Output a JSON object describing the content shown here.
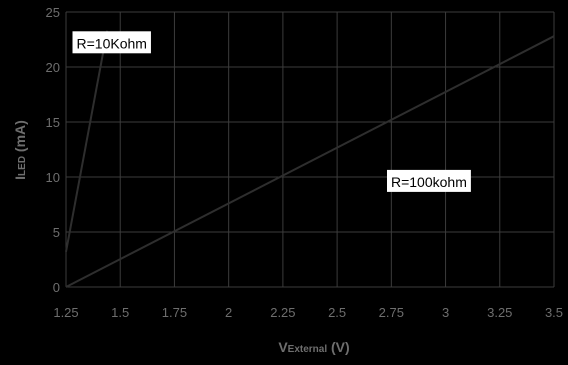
{
  "chart_data": {
    "type": "line",
    "title": "",
    "xlabel": {
      "main": "V",
      "sub": "External",
      "unit": " (V)"
    },
    "ylabel": {
      "main": "I",
      "sub": "LED",
      "unit": " (mA)"
    },
    "xlim": [
      1.25,
      3.5
    ],
    "ylim": [
      0,
      25
    ],
    "x_ticks": [
      "1.25",
      "1.5",
      "1.75",
      "2",
      "2.25",
      "2.5",
      "2.75",
      "3",
      "3.25",
      "3.5"
    ],
    "y_ticks": [
      "0",
      "5",
      "10",
      "15",
      "20",
      "25"
    ],
    "grid": true,
    "legend": "none",
    "series": [
      {
        "label_x": 1.78,
        "label_y": 22.0,
        "points": [
          [
            1.25,
            3.2
          ],
          [
            1.44,
            23.3
          ]
        ]
      },
      {
        "label_x": 2.5,
        "label_y": 9.3,
        "points": [
          [
            1.25,
            0.0
          ],
          [
            3.5,
            22.8
          ]
        ]
      }
    ],
    "annotations": [
      {
        "text": "R=10Kohm",
        "x": 1.28,
        "y": 21.7
      },
      {
        "text": "R=100kohm",
        "x": 2.73,
        "y": 9.1
      }
    ],
    "colors": {
      "background": "#000000",
      "plot_area": "#000000",
      "grid": "#3c3c3c",
      "line": "#2e2e2e",
      "axis_text": "#6e6e6e",
      "annotation_fill": "#ffffff"
    }
  }
}
